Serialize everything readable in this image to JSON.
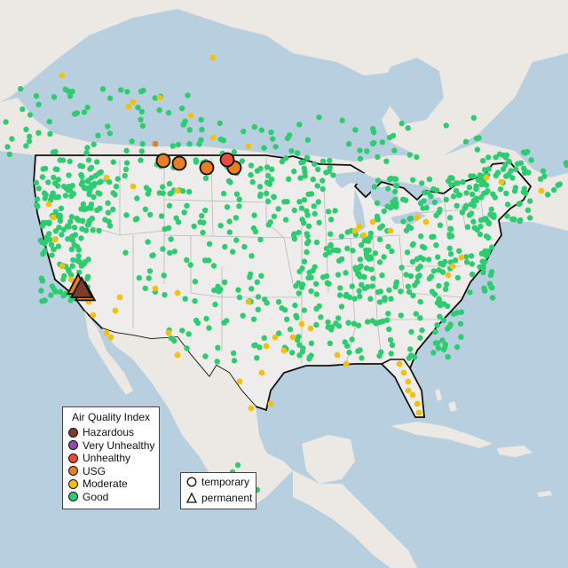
{
  "legend": {
    "title": "Air Quality Index",
    "items": [
      {
        "label": "Hazardous",
        "color": "#7e3b2a"
      },
      {
        "label": "Very Unhealthy",
        "color": "#8e4ea8"
      },
      {
        "label": "Unhealthy",
        "color": "#e84a3a"
      },
      {
        "label": "USG",
        "color": "#e67e22"
      },
      {
        "label": "Moderate",
        "color": "#f2c10f"
      },
      {
        "label": "Good",
        "color": "#2ecc71"
      }
    ]
  },
  "shape_legend": {
    "temporary": "temporary",
    "permanent": "permanent"
  },
  "colors": {
    "water": "#b8cfe0",
    "land": "#ece9e4",
    "usa": "#efedeb",
    "state_line": "#b9b9b9",
    "nodata": "#c8c8c8"
  }
}
